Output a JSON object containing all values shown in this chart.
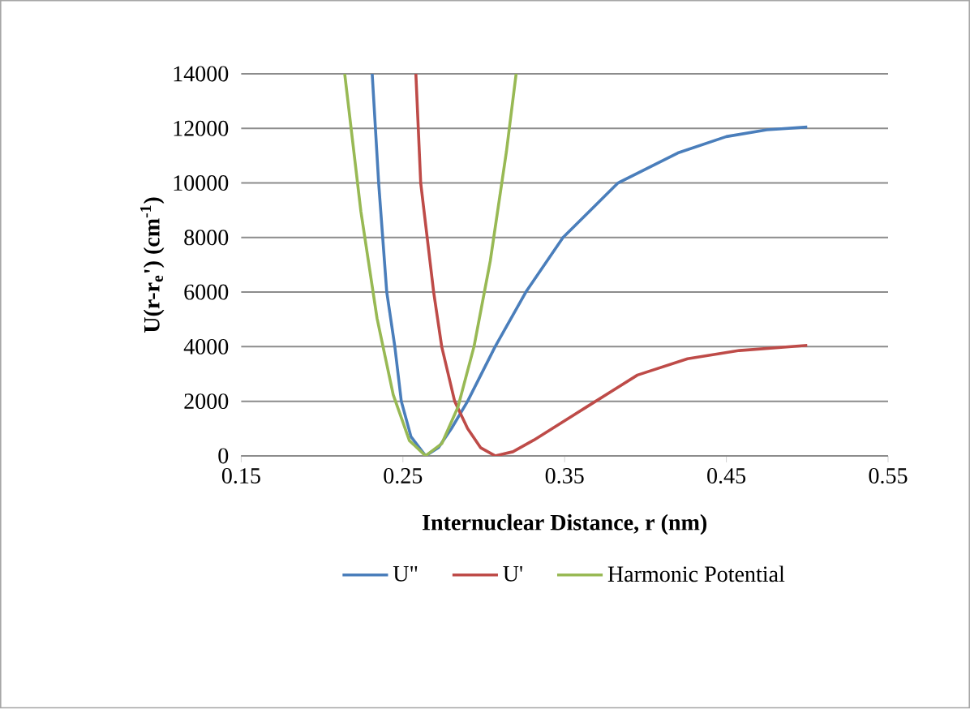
{
  "chart_data": {
    "type": "line",
    "xlabel": "Internuclear Distance, r (nm)",
    "ylabel": "U(r-r$_{e}$') (cm$^{-1}$)",
    "xlim": [
      0.15,
      0.55
    ],
    "xticks": [
      0.15,
      0.25,
      0.35,
      0.45,
      0.55
    ],
    "ylim": [
      0,
      14000
    ],
    "yticks": [
      0,
      2000,
      4000,
      6000,
      8000,
      10000,
      12000,
      14000
    ],
    "grid": "y",
    "legend": "bottom",
    "marker": "none",
    "line_style": "solid",
    "series": [
      {
        "name": "U\"",
        "color": "#4a7ebb",
        "x": [
          0.231,
          0.235,
          0.24,
          0.245,
          0.249,
          0.255,
          0.264,
          0.272,
          0.28,
          0.29,
          0.307,
          0.326,
          0.349,
          0.383,
          0.42,
          0.45,
          0.475,
          0.5
        ],
        "values": [
          14000,
          10000,
          6000,
          4000,
          2000,
          700,
          0,
          300,
          1000,
          2000,
          4000,
          6000,
          8000,
          10000,
          11100,
          11700,
          11950,
          12050
        ]
      },
      {
        "name": "U'",
        "color": "#be4b48",
        "x": [
          0.258,
          0.261,
          0.265,
          0.269,
          0.274,
          0.282,
          0.29,
          0.298,
          0.307,
          0.318,
          0.331,
          0.363,
          0.395,
          0.426,
          0.458,
          0.5
        ],
        "values": [
          14000,
          10000,
          8000,
          6000,
          4000,
          2000,
          1000,
          300,
          0,
          150,
          580,
          1770,
          2960,
          3560,
          3860,
          4050
        ]
      },
      {
        "name": "Harmonic Potential",
        "color": "#98b954",
        "x": [
          0.214,
          0.224,
          0.234,
          0.244,
          0.254,
          0.264,
          0.274,
          0.284,
          0.294,
          0.304,
          0.314,
          0.32
        ],
        "values": [
          14000,
          8960,
          5040,
          2240,
          560,
          0,
          446,
          1784,
          4014,
          7136,
          11150,
          14000
        ]
      }
    ]
  }
}
